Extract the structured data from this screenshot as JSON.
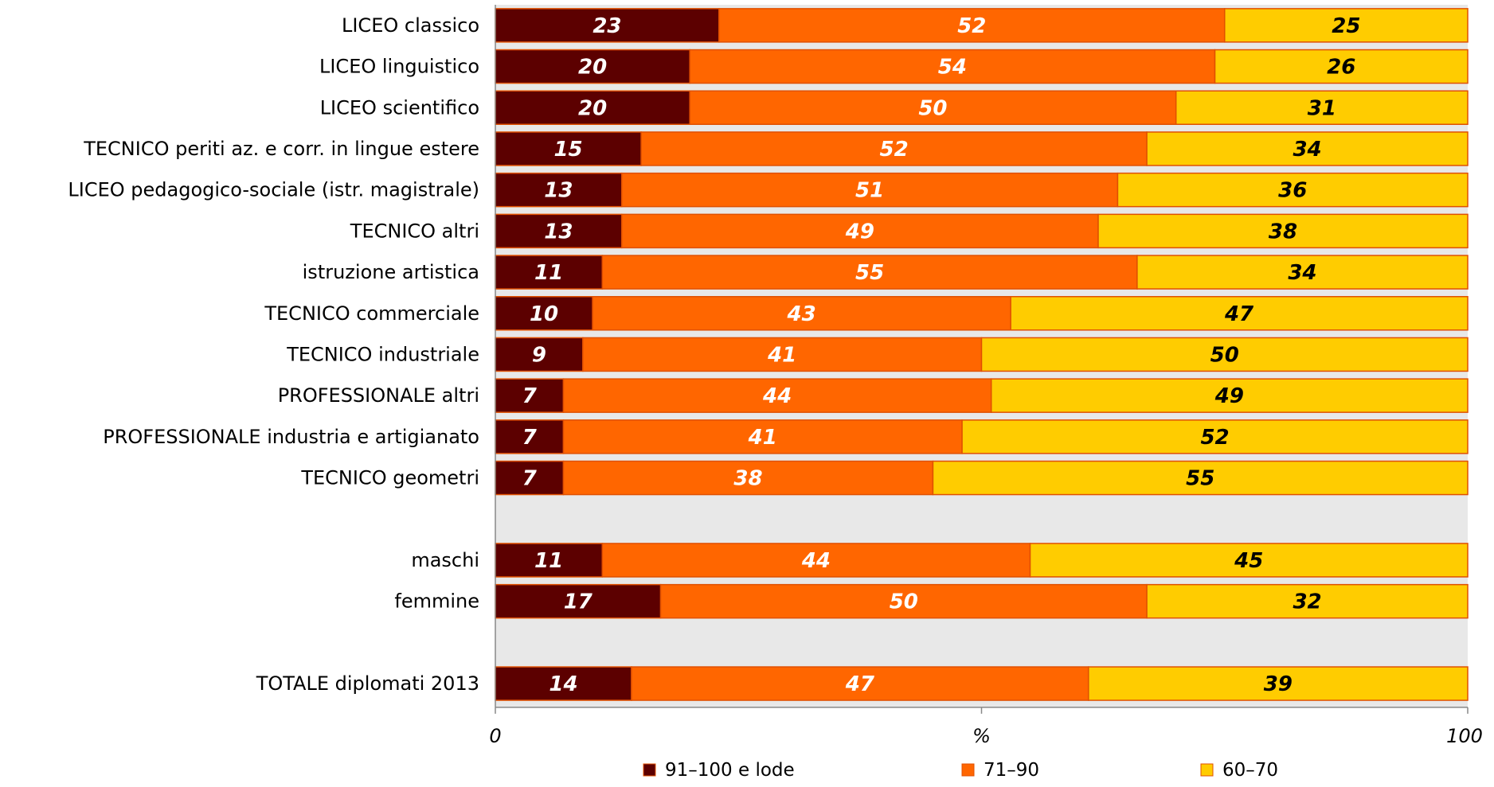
{
  "chart_data": {
    "type": "bar",
    "orientation": "horizontal",
    "stacked": true,
    "categories": [
      "LICEO classico",
      "LICEO linguistico",
      "LICEO scientifico",
      "TECNICO periti az. e corr. in lingue estere",
      "LICEO pedagogico-sociale (istr. magistrale)",
      "TECNICO altri",
      "istruzione artistica",
      "TECNICO commerciale",
      "TECNICO industriale",
      "PROFESSIONALE altri",
      "PROFESSIONALE industria e artigianato",
      "TECNICO geometri",
      "",
      "maschi",
      "femmine",
      "",
      "TOTALE diplomati 2013"
    ],
    "series": [
      {
        "name": "91–100 e lode",
        "color": "#5c0000",
        "label_color": "#ffffff",
        "values": [
          23,
          20,
          20,
          15,
          13,
          13,
          11,
          10,
          9,
          7,
          7,
          7,
          null,
          11,
          17,
          null,
          14
        ]
      },
      {
        "name": "71–90",
        "color": "#ff6600",
        "label_color": "#ffffff",
        "values": [
          52,
          54,
          50,
          52,
          51,
          49,
          55,
          43,
          41,
          44,
          41,
          38,
          null,
          44,
          50,
          null,
          47
        ]
      },
      {
        "name": "60–70",
        "color": "#ffcc00",
        "label_color": "#000000",
        "values": [
          25,
          26,
          31,
          34,
          36,
          38,
          34,
          47,
          50,
          49,
          52,
          55,
          null,
          45,
          32,
          null,
          39
        ]
      }
    ],
    "xlabel": "%",
    "xlim": [
      0,
      100
    ],
    "x_ticks": [
      "0",
      "100"
    ],
    "legend_position": "bottom",
    "plot_background": "#e8e8e8",
    "bar_border_color": "#e05000"
  }
}
